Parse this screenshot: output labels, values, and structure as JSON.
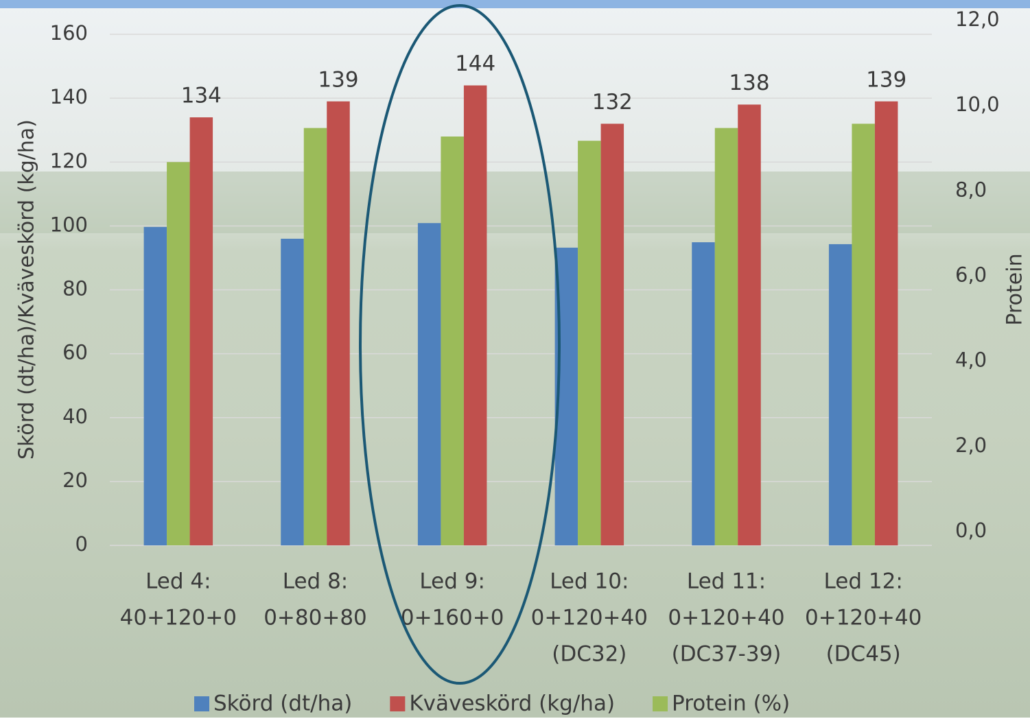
{
  "chart_data": {
    "type": "bar",
    "y_label": "Skörd (dt/ha)/Kväveskörd (kg/ha)",
    "y2_label": "Protein",
    "categories": [
      [
        "Led 4:",
        "40+120+0"
      ],
      [
        "Led 8:",
        "0+80+80"
      ],
      [
        "Led 9:",
        "0+160+0"
      ],
      [
        "Led 10:",
        "0+120+40",
        "(DC32)"
      ],
      [
        "Led 11:",
        "0+120+40",
        "(DC37-39)"
      ],
      [
        "Led 12:",
        "0+120+40",
        "(DC45)"
      ]
    ],
    "series": [
      {
        "name": "Skörd (dt/ha)",
        "color": "#4f81bd",
        "values": [
          99.7,
          96,
          100.9,
          93.2,
          94.9,
          94.3
        ]
      },
      {
        "name": "Protein (%)",
        "color": "#9bbb59",
        "axis": "y2",
        "values": [
          9.0,
          9.8,
          9.6,
          9.5,
          9.8,
          9.9
        ]
      },
      {
        "name": "Kväveskörd (kg/ha)",
        "color": "#c0504d",
        "values": [
          134,
          139,
          144,
          132,
          138,
          139
        ],
        "data_labels": true
      }
    ],
    "legend_order": [
      0,
      2,
      1
    ],
    "ylim": [
      0,
      160
    ],
    "yticks": [
      0,
      20,
      40,
      60,
      80,
      100,
      120,
      140,
      160
    ],
    "y2lim": [
      0,
      12
    ],
    "y2ticks": [
      {
        "value": 0,
        "label": "0,0"
      },
      {
        "value": 2,
        "label": "2,0"
      },
      {
        "value": 4,
        "label": "4,0"
      },
      {
        "value": 6,
        "label": "6,0"
      },
      {
        "value": 8,
        "label": "8,0"
      },
      {
        "value": 10,
        "label": "10,0"
      },
      {
        "value": 12,
        "label": "12,0"
      }
    ],
    "grid": true,
    "legend": "bottom"
  }
}
